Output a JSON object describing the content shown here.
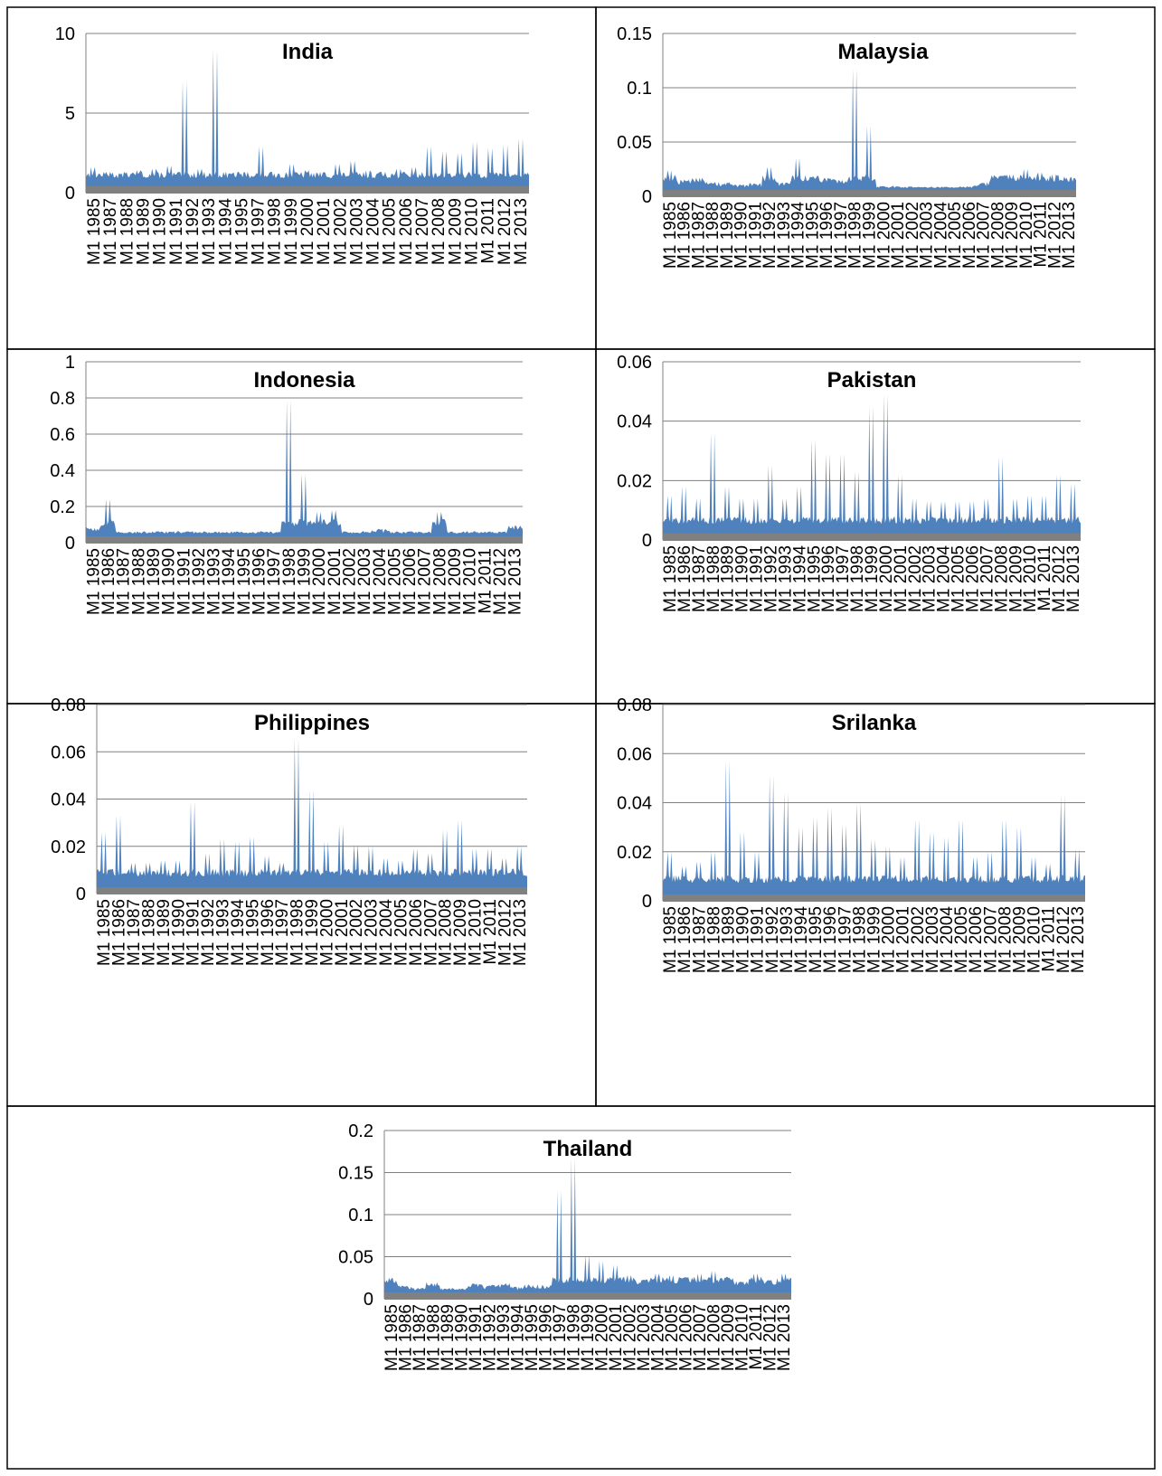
{
  "charts": [
    {
      "id": "india",
      "title": "India",
      "yticks": [
        "10",
        "5",
        "0"
      ],
      "yvals": [
        10,
        5,
        0
      ],
      "ymax": 10
    },
    {
      "id": "malaysia",
      "title": "Malaysia",
      "yticks": [
        "0.15",
        "0.1",
        "0.05",
        "0"
      ],
      "yvals": [
        0.15,
        0.1,
        0.05,
        0
      ],
      "ymax": 0.15
    },
    {
      "id": "indonesia",
      "title": "Indonesia",
      "yticks": [
        "1",
        "0.8",
        "0.6",
        "0.4",
        "0.2",
        "0"
      ],
      "yvals": [
        1,
        0.8,
        0.6,
        0.4,
        0.2,
        0
      ],
      "ymax": 1
    },
    {
      "id": "pakistan",
      "title": "Pakistan",
      "yticks": [
        "0.06",
        "0.04",
        "0.02",
        "0"
      ],
      "yvals": [
        0.06,
        0.04,
        0.02,
        0
      ],
      "ymax": 0.06
    },
    {
      "id": "philippines",
      "title": "Philippines",
      "yticks": [
        "0.08",
        "0.06",
        "0.04",
        "0.02",
        "0"
      ],
      "yvals": [
        0.08,
        0.06,
        0.04,
        0.02,
        0
      ],
      "ymax": 0.08
    },
    {
      "id": "srilanka",
      "title": "Srilanka",
      "yticks": [
        "0.08",
        "0.06",
        "0.04",
        "0.02",
        "0"
      ],
      "yvals": [
        0.08,
        0.06,
        0.04,
        0.02,
        0
      ],
      "ymax": 0.08
    },
    {
      "id": "thailand",
      "title": "Thailand",
      "yticks": [
        "0.2",
        "0.15",
        "0.1",
        "0.05",
        "0"
      ],
      "yvals": [
        0.2,
        0.15,
        0.1,
        0.05,
        0
      ],
      "ymax": 0.2
    }
  ],
  "xlabels": {
    "odd": [
      "M1 1985",
      "M1 1987",
      "M1 1988",
      "M1 1989",
      "M1 1990",
      "M1 1991",
      "M1 1992",
      "M1 1993",
      "M1 1994",
      "M1 1995",
      "M1 1997",
      "M1 1998",
      "M1 1999",
      "M1 2000",
      "M1 2001",
      "M1 2002",
      "M1 2003",
      "M1 2004",
      "M1 2005",
      "M1 2006",
      "M1 2007",
      "M1 2008",
      "M1 2009",
      "M1 2010",
      "M1 2011",
      "M1 2012",
      "M1 2013"
    ],
    "even": [
      "M1 1985",
      "M1 1986",
      "M1 1987",
      "M1 1988",
      "M1 1989",
      "M1 1990",
      "M1 1991",
      "M1 1992",
      "M1 1993",
      "M1 1994",
      "M1 1995",
      "M1 1996",
      "M1 1997",
      "M1 1998",
      "M1 1999",
      "M1 2000",
      "M1 2001",
      "M1 2002",
      "M1 2003",
      "M1 2004",
      "M1 2005",
      "M1 2006",
      "M1 2007",
      "M1 2008",
      "M1 2009",
      "M1 2010",
      "M1 2011",
      "M1 2012",
      "M1 2013"
    ]
  },
  "colors": {
    "area": "#4f81bd",
    "baseline": "#808080",
    "grid": "#808080"
  },
  "chart_data": [
    {
      "type": "area",
      "title": "India",
      "ylim": [
        0,
        10
      ],
      "x": [
        "1985",
        "1986",
        "1987",
        "1988",
        "1989",
        "1990",
        "1991",
        "1992",
        "1993",
        "1994",
        "1995",
        "1996",
        "1997",
        "1998",
        "1999",
        "2000",
        "2001",
        "2002",
        "2003",
        "2004",
        "2005",
        "2006",
        "2007",
        "2008",
        "2009",
        "2010",
        "2011",
        "2012",
        "2013"
      ],
      "series": [
        {
          "values": [
            1.6,
            1.3,
            1.2,
            1.4,
            1.5,
            1.7,
            7.0,
            1.5,
            9.0,
            1.2,
            1.3,
            2.9,
            1.2,
            1.8,
            1.4,
            1.3,
            1.8,
            2.0,
            1.4,
            1.3,
            1.5,
            1.6,
            2.9,
            2.6,
            2.5,
            3.2,
            2.8,
            3.0,
            3.4
          ]
        }
      ]
    },
    {
      "type": "area",
      "title": "Malaysia",
      "ylim": [
        0,
        0.15
      ],
      "x": [
        "1985",
        "1986",
        "1987",
        "1988",
        "1989",
        "1990",
        "1991",
        "1992",
        "1993",
        "1994",
        "1995",
        "1996",
        "1997",
        "1998",
        "1999",
        "2000",
        "2001",
        "2002",
        "2003",
        "2004",
        "2005",
        "2006",
        "2007",
        "2008",
        "2009",
        "2010",
        "2011",
        "2012",
        "2013"
      ],
      "series": [
        {
          "values": [
            0.024,
            0.014,
            0.017,
            0.012,
            0.012,
            0.01,
            0.011,
            0.027,
            0.012,
            0.035,
            0.018,
            0.017,
            0.015,
            0.118,
            0.065,
            0.009,
            0.009,
            0.008,
            0.008,
            0.008,
            0.008,
            0.009,
            0.012,
            0.018,
            0.02,
            0.025,
            0.022,
            0.02,
            0.017
          ]
        }
      ]
    },
    {
      "type": "area",
      "title": "Indonesia",
      "ylim": [
        0,
        1
      ],
      "x": [
        "1985",
        "1986",
        "1987",
        "1988",
        "1989",
        "1990",
        "1991",
        "1992",
        "1993",
        "1994",
        "1995",
        "1996",
        "1997",
        "1998",
        "1999",
        "2000",
        "2001",
        "2002",
        "2003",
        "2004",
        "2005",
        "2006",
        "2007",
        "2008",
        "2009",
        "2010",
        "2011",
        "2012",
        "2013"
      ],
      "series": [
        {
          "values": [
            0.08,
            0.24,
            0.03,
            0.02,
            0.02,
            0.02,
            0.02,
            0.02,
            0.03,
            0.02,
            0.02,
            0.02,
            0.03,
            0.79,
            0.38,
            0.17,
            0.18,
            0.05,
            0.06,
            0.07,
            0.06,
            0.05,
            0.04,
            0.17,
            0.05,
            0.03,
            0.02,
            0.02,
            0.09
          ]
        }
      ]
    },
    {
      "type": "area",
      "title": "Pakistan",
      "ylim": [
        0,
        0.06
      ],
      "x": [
        "1985",
        "1986",
        "1987",
        "1988",
        "1989",
        "1990",
        "1991",
        "1992",
        "1993",
        "1994",
        "1995",
        "1996",
        "1997",
        "1998",
        "1999",
        "2000",
        "2001",
        "2002",
        "2003",
        "2004",
        "2005",
        "2006",
        "2007",
        "2008",
        "2009",
        "2010",
        "2011",
        "2012",
        "2013"
      ],
      "series": [
        {
          "values": [
            0.015,
            0.018,
            0.014,
            0.036,
            0.018,
            0.014,
            0.014,
            0.025,
            0.014,
            0.018,
            0.034,
            0.029,
            0.029,
            0.023,
            0.045,
            0.049,
            0.022,
            0.014,
            0.013,
            0.013,
            0.013,
            0.013,
            0.014,
            0.028,
            0.014,
            0.015,
            0.015,
            0.022,
            0.019
          ]
        }
      ]
    },
    {
      "type": "area",
      "title": "Philippines",
      "ylim": [
        0,
        0.08
      ],
      "x": [
        "1985",
        "1986",
        "1987",
        "1988",
        "1989",
        "1990",
        "1991",
        "1992",
        "1993",
        "1994",
        "1995",
        "1996",
        "1997",
        "1998",
        "1999",
        "2000",
        "2001",
        "2002",
        "2003",
        "2004",
        "2005",
        "2006",
        "2007",
        "2008",
        "2009",
        "2010",
        "2011",
        "2012",
        "2013"
      ],
      "series": [
        {
          "values": [
            0.026,
            0.033,
            0.013,
            0.013,
            0.014,
            0.014,
            0.039,
            0.017,
            0.023,
            0.022,
            0.024,
            0.016,
            0.013,
            0.066,
            0.044,
            0.022,
            0.029,
            0.021,
            0.02,
            0.015,
            0.014,
            0.019,
            0.017,
            0.027,
            0.031,
            0.019,
            0.019,
            0.015,
            0.02
          ]
        }
      ]
    },
    {
      "type": "area",
      "title": "Srilanka",
      "ylim": [
        0,
        0.08
      ],
      "x": [
        "1985",
        "1986",
        "1987",
        "1988",
        "1989",
        "1990",
        "1991",
        "1992",
        "1993",
        "1994",
        "1995",
        "1996",
        "1997",
        "1998",
        "1999",
        "2000",
        "2001",
        "2002",
        "2003",
        "2004",
        "2005",
        "2006",
        "2007",
        "2008",
        "2009",
        "2010",
        "2011",
        "2012",
        "2013"
      ],
      "series": [
        {
          "values": [
            0.02,
            0.014,
            0.016,
            0.02,
            0.057,
            0.028,
            0.02,
            0.051,
            0.044,
            0.03,
            0.034,
            0.038,
            0.031,
            0.04,
            0.025,
            0.022,
            0.018,
            0.033,
            0.028,
            0.026,
            0.033,
            0.018,
            0.02,
            0.033,
            0.03,
            0.018,
            0.015,
            0.043,
            0.021
          ]
        }
      ]
    },
    {
      "type": "area",
      "title": "Thailand",
      "ylim": [
        0,
        0.2
      ],
      "x": [
        "1985",
        "1986",
        "1987",
        "1988",
        "1989",
        "1990",
        "1991",
        "1992",
        "1993",
        "1994",
        "1995",
        "1996",
        "1997",
        "1998",
        "1999",
        "2000",
        "2001",
        "2002",
        "2003",
        "2004",
        "2005",
        "2006",
        "2007",
        "2008",
        "2009",
        "2010",
        "2011",
        "2012",
        "2013"
      ],
      "series": [
        {
          "values": [
            0.025,
            0.015,
            0.012,
            0.018,
            0.012,
            0.012,
            0.018,
            0.015,
            0.017,
            0.014,
            0.016,
            0.015,
            0.129,
            0.167,
            0.052,
            0.045,
            0.04,
            0.028,
            0.022,
            0.03,
            0.028,
            0.025,
            0.03,
            0.033,
            0.025,
            0.02,
            0.03,
            0.022,
            0.03
          ]
        }
      ]
    }
  ]
}
